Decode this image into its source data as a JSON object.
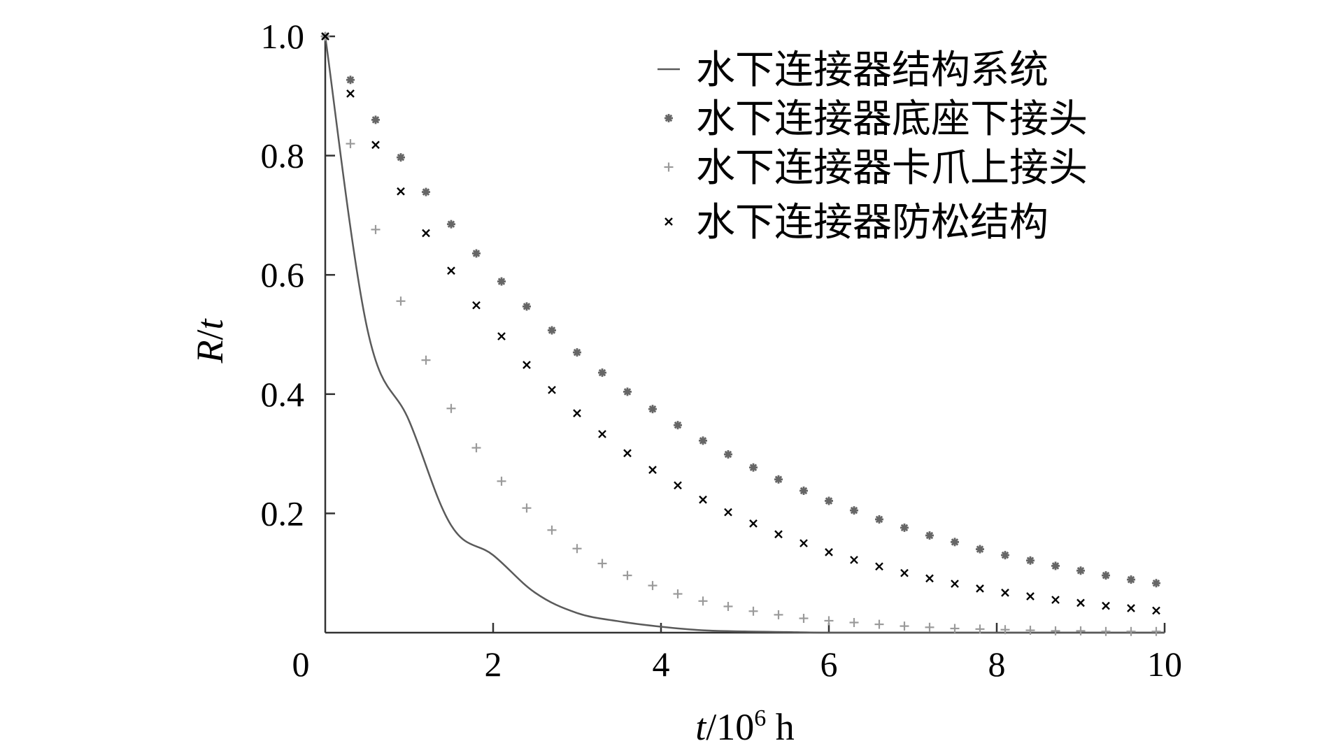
{
  "chart_data": {
    "type": "scatter",
    "xlabel": "t/10⁶ h",
    "xlabel_parts": {
      "var": "t",
      "base": "/10",
      "exp": "6",
      "unit": " h"
    },
    "ylabel": "R/t",
    "ylabel_parts": {
      "R": "R",
      "slash": "/",
      "t": "t"
    },
    "xlim": [
      0,
      10
    ],
    "ylim": [
      0,
      1.0
    ],
    "x_ticks": [
      "0",
      "2",
      "4",
      "6",
      "8",
      "10"
    ],
    "y_ticks": [
      "0.2",
      "0.4",
      "0.6",
      "0.8",
      "1.0"
    ],
    "grid": false,
    "legend_position": "top-right",
    "x": [
      0,
      0.3,
      0.6,
      0.9,
      1.2,
      1.5,
      1.8,
      2.1,
      2.4,
      2.7,
      3.0,
      3.3,
      3.6,
      3.9,
      4.2,
      4.5,
      4.8,
      5.1,
      5.4,
      5.7,
      6.0,
      6.3,
      6.6,
      6.9,
      7.2,
      7.5,
      7.8,
      8.1,
      8.4,
      8.7,
      9.0,
      9.3,
      9.6,
      9.9
    ],
    "series": [
      {
        "name": "水下连接器结构系统",
        "marker": "line",
        "color": "#5a5a5a",
        "x": [
          0,
          0.5,
          1.0,
          1.5,
          2.0,
          2.5,
          3.0,
          3.5,
          4.0,
          4.5,
          5.0,
          5.5,
          6.0,
          7.0,
          8.0,
          9.0,
          10.0
        ],
        "values": [
          1.0,
          0.51,
          0.355,
          0.18,
          0.13,
          0.067,
          0.033,
          0.019,
          0.01,
          0.004,
          0.002,
          0.001,
          0,
          0,
          0,
          0,
          0
        ]
      },
      {
        "name": "水下连接器底座下接头",
        "marker": "asterisk",
        "color": "#666666",
        "values": [
          1.0,
          0.927,
          0.86,
          0.797,
          0.739,
          0.685,
          0.636,
          0.589,
          0.547,
          0.507,
          0.47,
          0.436,
          0.404,
          0.375,
          0.348,
          0.322,
          0.299,
          0.277,
          0.257,
          0.238,
          0.221,
          0.205,
          0.19,
          0.176,
          0.163,
          0.152,
          0.14,
          0.13,
          0.121,
          0.112,
          0.104,
          0.096,
          0.089,
          0.083
        ]
      },
      {
        "name": "水下连接器卡爪上接头",
        "marker": "plus",
        "color": "#9a9a9a",
        "values": [
          1.0,
          0.82,
          0.676,
          0.556,
          0.457,
          0.376,
          0.31,
          0.254,
          0.209,
          0.172,
          0.141,
          0.116,
          0.096,
          0.079,
          0.065,
          0.053,
          0.044,
          0.036,
          0.03,
          0.024,
          0.02,
          0.017,
          0.014,
          0.011,
          0.009,
          0.007,
          0.006,
          0.005,
          0.004,
          0.003,
          0.003,
          0.002,
          0.002,
          0.002
        ]
      },
      {
        "name": "水下连接器防松结构",
        "marker": "cross",
        "color": "#000000",
        "values": [
          1.0,
          0.904,
          0.818,
          0.74,
          0.67,
          0.607,
          0.549,
          0.497,
          0.449,
          0.407,
          0.368,
          0.333,
          0.301,
          0.273,
          0.247,
          0.223,
          0.202,
          0.183,
          0.165,
          0.15,
          0.135,
          0.122,
          0.111,
          0.1,
          0.091,
          0.082,
          0.074,
          0.067,
          0.061,
          0.055,
          0.05,
          0.045,
          0.041,
          0.037
        ]
      }
    ]
  }
}
